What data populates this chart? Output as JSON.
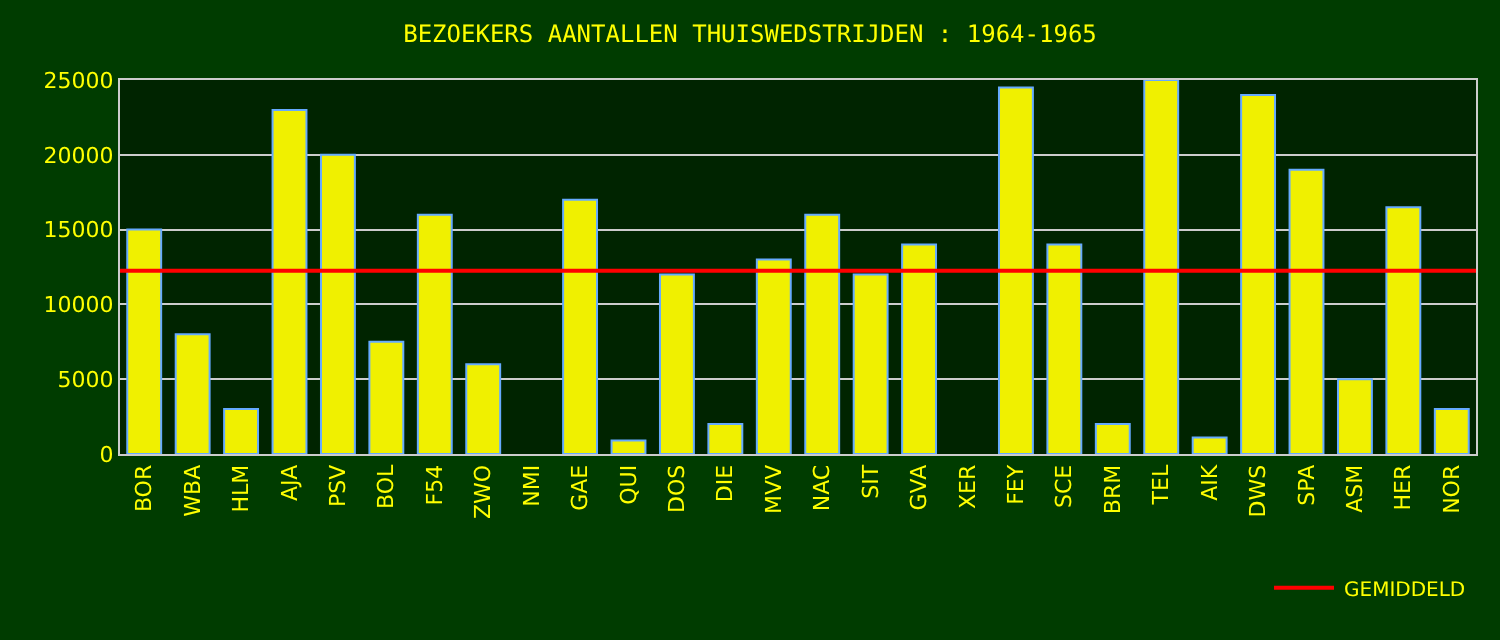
{
  "chart_data": {
    "type": "bar",
    "title": "BEZOEKERS AANTALLEN THUISWEDSTRIJDEN : 1964-1965",
    "categories": [
      "BOR",
      "WBA",
      "HLM",
      "AJA",
      "PSV",
      "BOL",
      "F54",
      "ZWO",
      "NMI",
      "GAE",
      "QUI",
      "DOS",
      "DIE",
      "MVV",
      "NAC",
      "SIT",
      "GVA",
      "XER",
      "FEY",
      "SCE",
      "BRM",
      "TEL",
      "AIK",
      "DWS",
      "SPA",
      "ASM",
      "HER",
      "NOR"
    ],
    "values": [
      15000,
      8000,
      3000,
      23000,
      20000,
      7500,
      16000,
      6000,
      null,
      17000,
      900,
      12000,
      2000,
      13000,
      16000,
      12000,
      14000,
      null,
      24500,
      14000,
      2000,
      25000,
      1100,
      24000,
      19000,
      5000,
      16500,
      3000
    ],
    "color": "#f0f000",
    "ylim": [
      0,
      25000
    ],
    "yticks": [
      0,
      5000,
      10000,
      15000,
      20000,
      25000
    ],
    "grid": "y",
    "ref_lines": [
      {
        "axis": "y",
        "value": 12250,
        "label": "GEMIDDELD",
        "color": "#ff0000"
      }
    ],
    "legend": "bottom right"
  }
}
